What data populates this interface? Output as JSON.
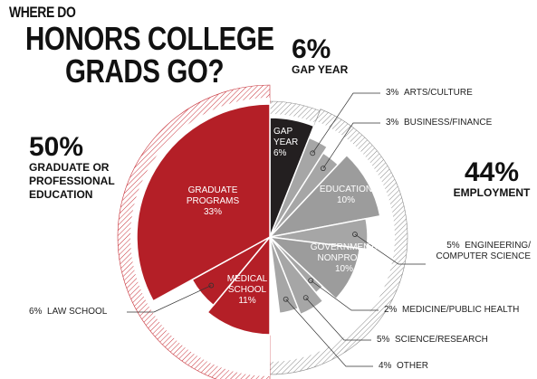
{
  "title_lines": [
    "WHERE DO",
    "HONORS COLLEGE",
    "GRADS GO?"
  ],
  "chart_data": {
    "type": "pie",
    "groups": [
      {
        "name": "GAP YEAR",
        "value": 6,
        "value_label": "6%",
        "color": "#8a8a8a"
      },
      {
        "name": "EMPLOYMENT",
        "value": 44,
        "value_label": "44%",
        "color": "#8a8a8a"
      },
      {
        "name": "GRADUATE OR PROFESSIONAL EDUCATION",
        "value": 50,
        "value_label": "50%",
        "color": "#c8323a"
      }
    ],
    "categories": [
      "GAP YEAR",
      "ARTS/CULTURE",
      "BUSINESS/FINANCE",
      "EDUCATION",
      "ENGINEERING/ COMPUTER SCIENCE",
      "GOVERNMENT/ NONPROFIT",
      "MEDICINE/PUBLIC HEALTH",
      "SCIENCE/RESEARCH",
      "OTHER",
      "MEDICAL SCHOOL",
      "LAW SCHOOL",
      "GRADUATE PROGRAMS"
    ],
    "values": [
      6,
      3,
      3,
      10,
      5,
      10,
      2,
      5,
      4,
      11,
      6,
      33
    ],
    "value_labels": [
      "6%",
      "3%",
      "3%",
      "10%",
      "5%",
      "10%",
      "2%",
      "5%",
      "4%",
      "11%",
      "6%",
      "33%"
    ],
    "category_groups": [
      0,
      1,
      1,
      1,
      1,
      1,
      1,
      1,
      1,
      2,
      2,
      2
    ],
    "colors": [
      "#231f20",
      "#a6a6a6",
      "#a6a6a6",
      "#9c9c9c",
      "#a6a6a6",
      "#9c9c9c",
      "#a6a6a6",
      "#a6a6a6",
      "#a6a6a6",
      "#b41f27",
      "#b41f27",
      "#b41f27"
    ]
  }
}
